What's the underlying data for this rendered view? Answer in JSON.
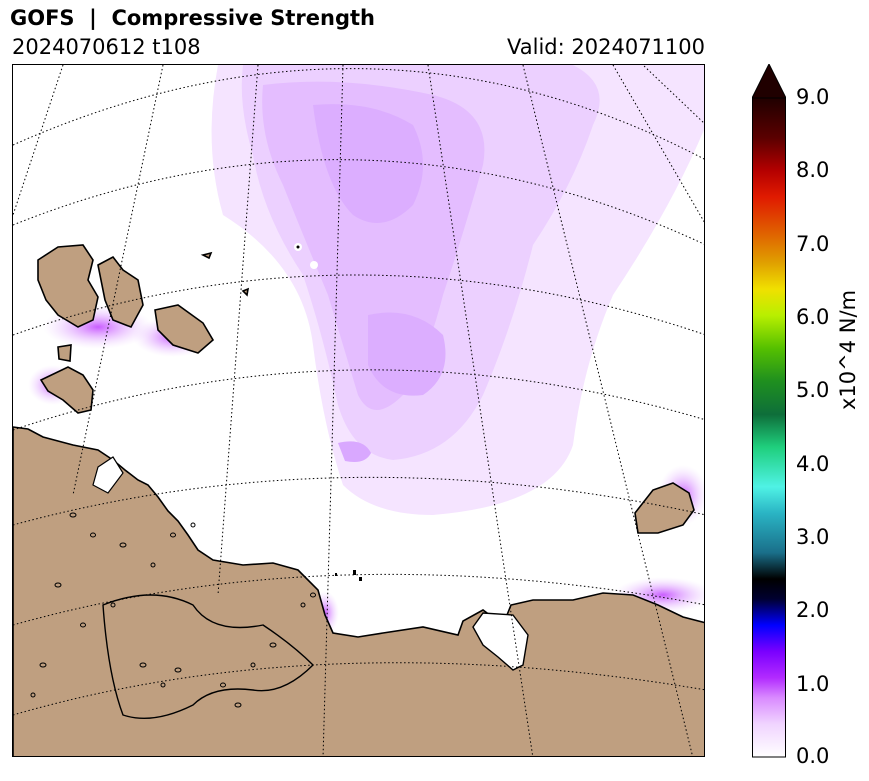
{
  "header": {
    "title": "GOFS  |  Compressive Strength",
    "run_label": "2024070612 t108",
    "valid_label": "Valid: 2024071100"
  },
  "colorbar": {
    "unit_label": "x10^4 N/m",
    "ticks": [
      "0.0",
      "1.0",
      "2.0",
      "3.0",
      "4.0",
      "5.0",
      "6.0",
      "7.0",
      "8.0",
      "9.0"
    ],
    "range": [
      0.0,
      9.0
    ],
    "extend": "max",
    "colors": [
      "#ffffff",
      "#e9b8ff",
      "#c64cff",
      "#8a00ff",
      "#0000ff",
      "#000000",
      "#1a6f8a",
      "#4ff2e5",
      "#1fcf7d",
      "#0e7a3a",
      "#3fb400",
      "#b8ef00",
      "#f0d000",
      "#e07a00",
      "#d81400",
      "#b40000",
      "#6e0000",
      "#200000"
    ]
  },
  "map": {
    "land_color": "#bf9f80",
    "ice_color": "#e4bdff",
    "graticule_style": "dotted"
  }
}
